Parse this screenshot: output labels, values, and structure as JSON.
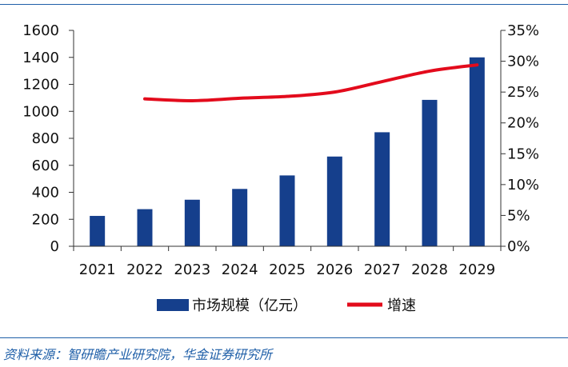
{
  "source_note": "资料来源：智研瞻产业研究院，华金证券研究所",
  "colors": {
    "bar": "#153f8c",
    "line": "#e30b1c",
    "rule": "#1f5fa8"
  },
  "chart_data": {
    "type": "bar",
    "categories": [
      "2021",
      "2022",
      "2023",
      "2024",
      "2025",
      "2026",
      "2027",
      "2028",
      "2029"
    ],
    "series": [
      {
        "name": "市场规模（亿元）",
        "type": "bar",
        "axis": "left",
        "values": [
          225,
          275,
          345,
          425,
          525,
          665,
          845,
          1085,
          1400
        ]
      },
      {
        "name": "增速",
        "type": "line",
        "axis": "right",
        "values": [
          null,
          0.239,
          0.236,
          0.24,
          0.243,
          0.25,
          0.267,
          0.284,
          0.294
        ]
      }
    ],
    "y_left": {
      "min": 0,
      "max": 1600,
      "step": 200,
      "ticks": [
        "0",
        "200",
        "400",
        "600",
        "800",
        "1000",
        "1200",
        "1400",
        "1600"
      ]
    },
    "y_right": {
      "min": 0,
      "max": 0.35,
      "step": 0.05,
      "ticks": [
        "0%",
        "5%",
        "10%",
        "15%",
        "20%",
        "25%",
        "30%",
        "35%"
      ]
    },
    "legend": {
      "position": "bottom",
      "items": [
        "市场规模（亿元）",
        "增速"
      ]
    },
    "grid": false
  }
}
